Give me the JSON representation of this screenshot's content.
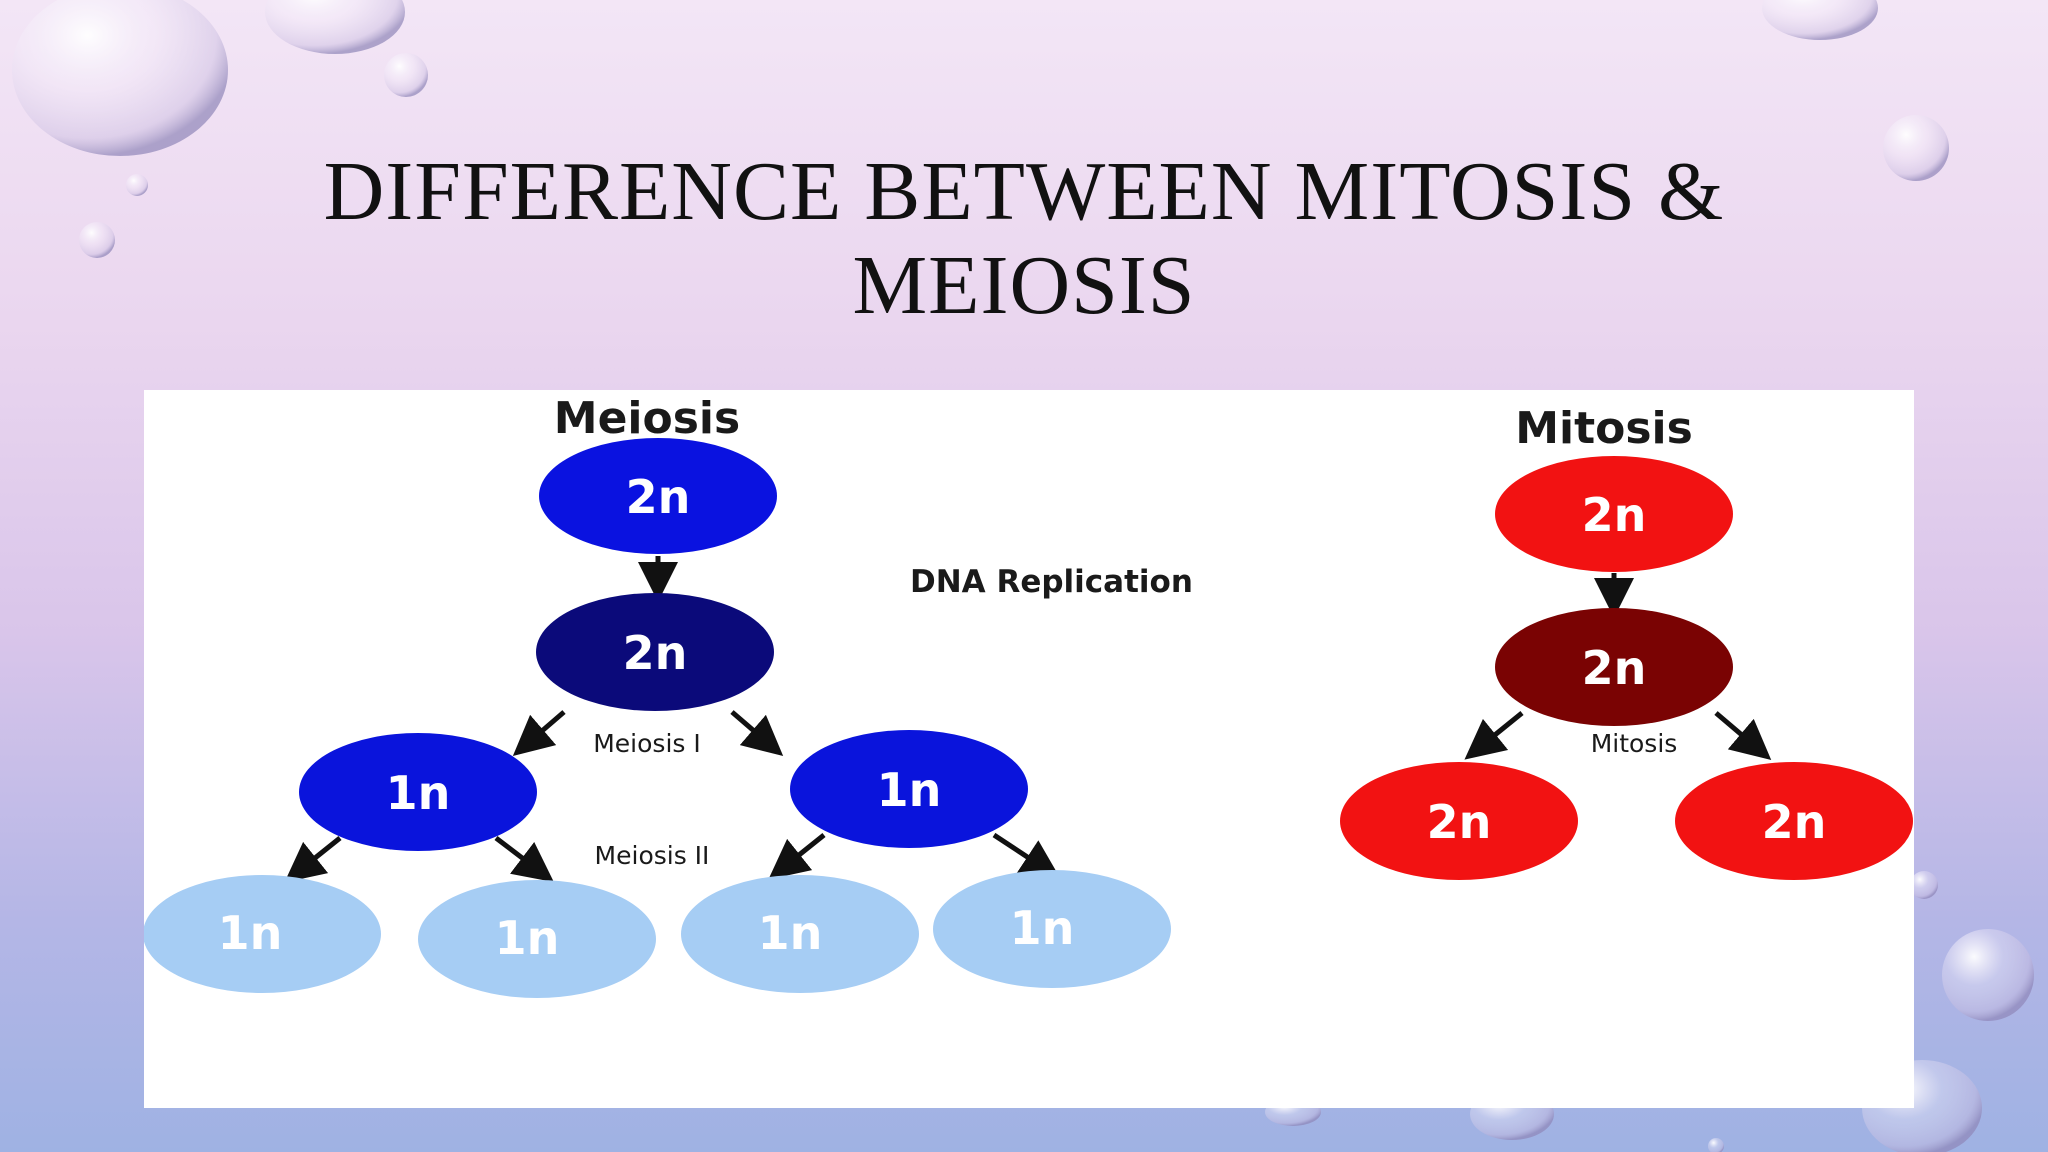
{
  "slide": {
    "title_line1": "DIFFERENCE BETWEEN MITOSIS &",
    "title_line2": "MEIOSIS"
  },
  "diagram": {
    "meiosis": {
      "heading": "Meiosis",
      "parent": "2n",
      "replicated": "2n",
      "stage1_label": "Meiosis I",
      "stage1_cells": [
        "1n",
        "1n"
      ],
      "stage2_label": "Meiosis II",
      "stage2_cells": [
        "1n",
        "1n",
        "1n",
        "1n"
      ],
      "colors": {
        "parent": "#0a12e0",
        "replicated": "#0b0a7a",
        "stage1": "#0a14dc",
        "stage2": "#a6cdf4"
      }
    },
    "dna_replication_label": "DNA Replication",
    "mitosis": {
      "heading": "Mitosis",
      "parent": "2n",
      "replicated": "2n",
      "stage_label": "Mitosis",
      "daughter_cells": [
        "2n",
        "2n"
      ],
      "colors": {
        "parent": "#f21212",
        "replicated": "#7a0303",
        "daughters": "#f21212"
      }
    }
  }
}
